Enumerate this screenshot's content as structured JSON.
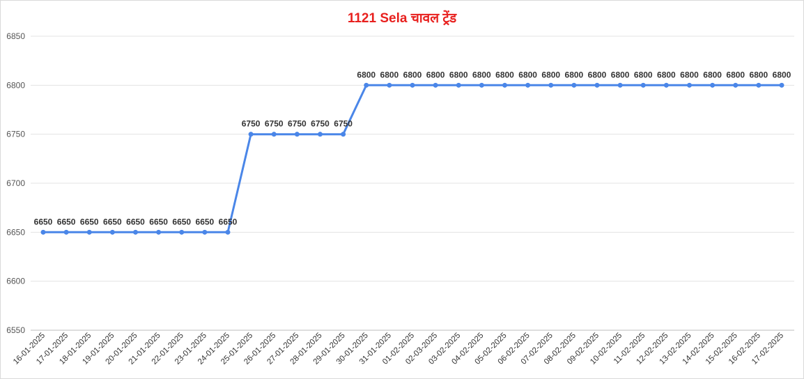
{
  "chart_data": {
    "type": "line",
    "title": "1121 Sela चावल ट्रेंड",
    "xlabel": "",
    "ylabel": "",
    "ylim": [
      6550,
      6850
    ],
    "yticks": [
      6550,
      6600,
      6650,
      6700,
      6750,
      6800,
      6850
    ],
    "grid": true,
    "legend": "none",
    "line_color": "#4a86e8",
    "title_color": "#e8201e",
    "categories": [
      "16-01-2025",
      "17-01-2025",
      "18-01-2025",
      "19-01-2025",
      "20-01-2025",
      "21-01-2025",
      "22-01-2025",
      "23-01-2025",
      "24-01-2025",
      "25-01-2025",
      "26-01-2025",
      "27-01-2025",
      "28-01-2025",
      "29-01-2025",
      "30-01-2025",
      "31-01-2025",
      "01-02-2025",
      "02-03-2025",
      "03-02-2025",
      "04-02-2025",
      "05-02-2025",
      "06-02-2025",
      "07-02-2025",
      "08-02-2025",
      "09-02-2025",
      "10-02-2025",
      "11-02-2025",
      "12-02-2025",
      "13-02-2025",
      "14-02-2025",
      "15-02-2025",
      "16-02-2025",
      "17-02-2025"
    ],
    "series": [
      {
        "values": [
          6650,
          6650,
          6650,
          6650,
          6650,
          6650,
          6650,
          6650,
          6650,
          6750,
          6750,
          6750,
          6750,
          6750,
          6800,
          6800,
          6800,
          6800,
          6800,
          6800,
          6800,
          6800,
          6800,
          6800,
          6800,
          6800,
          6800,
          6800,
          6800,
          6800,
          6800,
          6800,
          6800
        ],
        "data_labels": [
          "6650",
          "6650",
          "6650",
          "6650",
          "6650",
          "6650",
          "6650",
          "6650",
          "6650",
          "6750",
          "6750",
          "6750",
          "6750",
          "6750",
          "6800",
          "6800",
          "6800",
          "6800",
          "6800",
          "6800",
          "6800",
          "6800",
          "6800",
          "6800",
          "6800",
          "6800",
          "6800",
          "6800",
          "6800",
          "6800",
          "6800",
          "6800",
          "6800"
        ]
      }
    ]
  }
}
